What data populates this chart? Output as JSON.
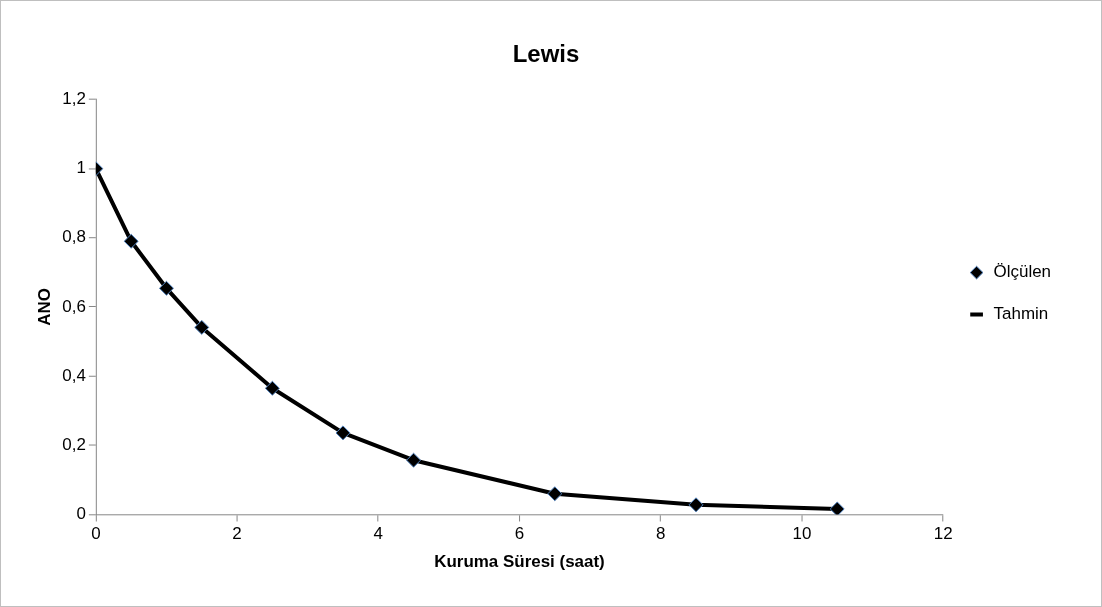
{
  "chart_data": {
    "type": "scatter",
    "title": "Lewis",
    "xlabel": "Kuruma Süresi (saat)",
    "ylabel": "ANO",
    "x": [
      0,
      0.5,
      1,
      1.5,
      2.5,
      3.5,
      4.5,
      6.5,
      8.5,
      10.5
    ],
    "series": [
      {
        "name": "Ölçülen",
        "type": "scatter",
        "marker": "diamond",
        "color": "#000000",
        "values": [
          1,
          0.79,
          0.654,
          0.541,
          0.365,
          0.236,
          0.157,
          0.06,
          0.028,
          0.016
        ]
      },
      {
        "name": "Tahmin",
        "type": "line",
        "marker": "none",
        "color": "#000000",
        "values": [
          1,
          0.79,
          0.654,
          0.541,
          0.365,
          0.236,
          0.157,
          0.06,
          0.028,
          0.016
        ]
      }
    ],
    "xlim": [
      0,
      12
    ],
    "xticks": [
      0,
      2,
      4,
      6,
      8,
      10,
      12
    ],
    "ylim": [
      0,
      1.2
    ],
    "yticks": [
      0,
      {
        "value": 0.2,
        "label": "0,2"
      },
      {
        "value": 0.4,
        "label": "0,4"
      },
      {
        "value": 0.6,
        "label": "0,6"
      },
      {
        "value": 0.8,
        "label": "0,8"
      },
      1,
      {
        "value": 1.2,
        "label": "1,2"
      }
    ],
    "grid": false,
    "legend": "right"
  }
}
